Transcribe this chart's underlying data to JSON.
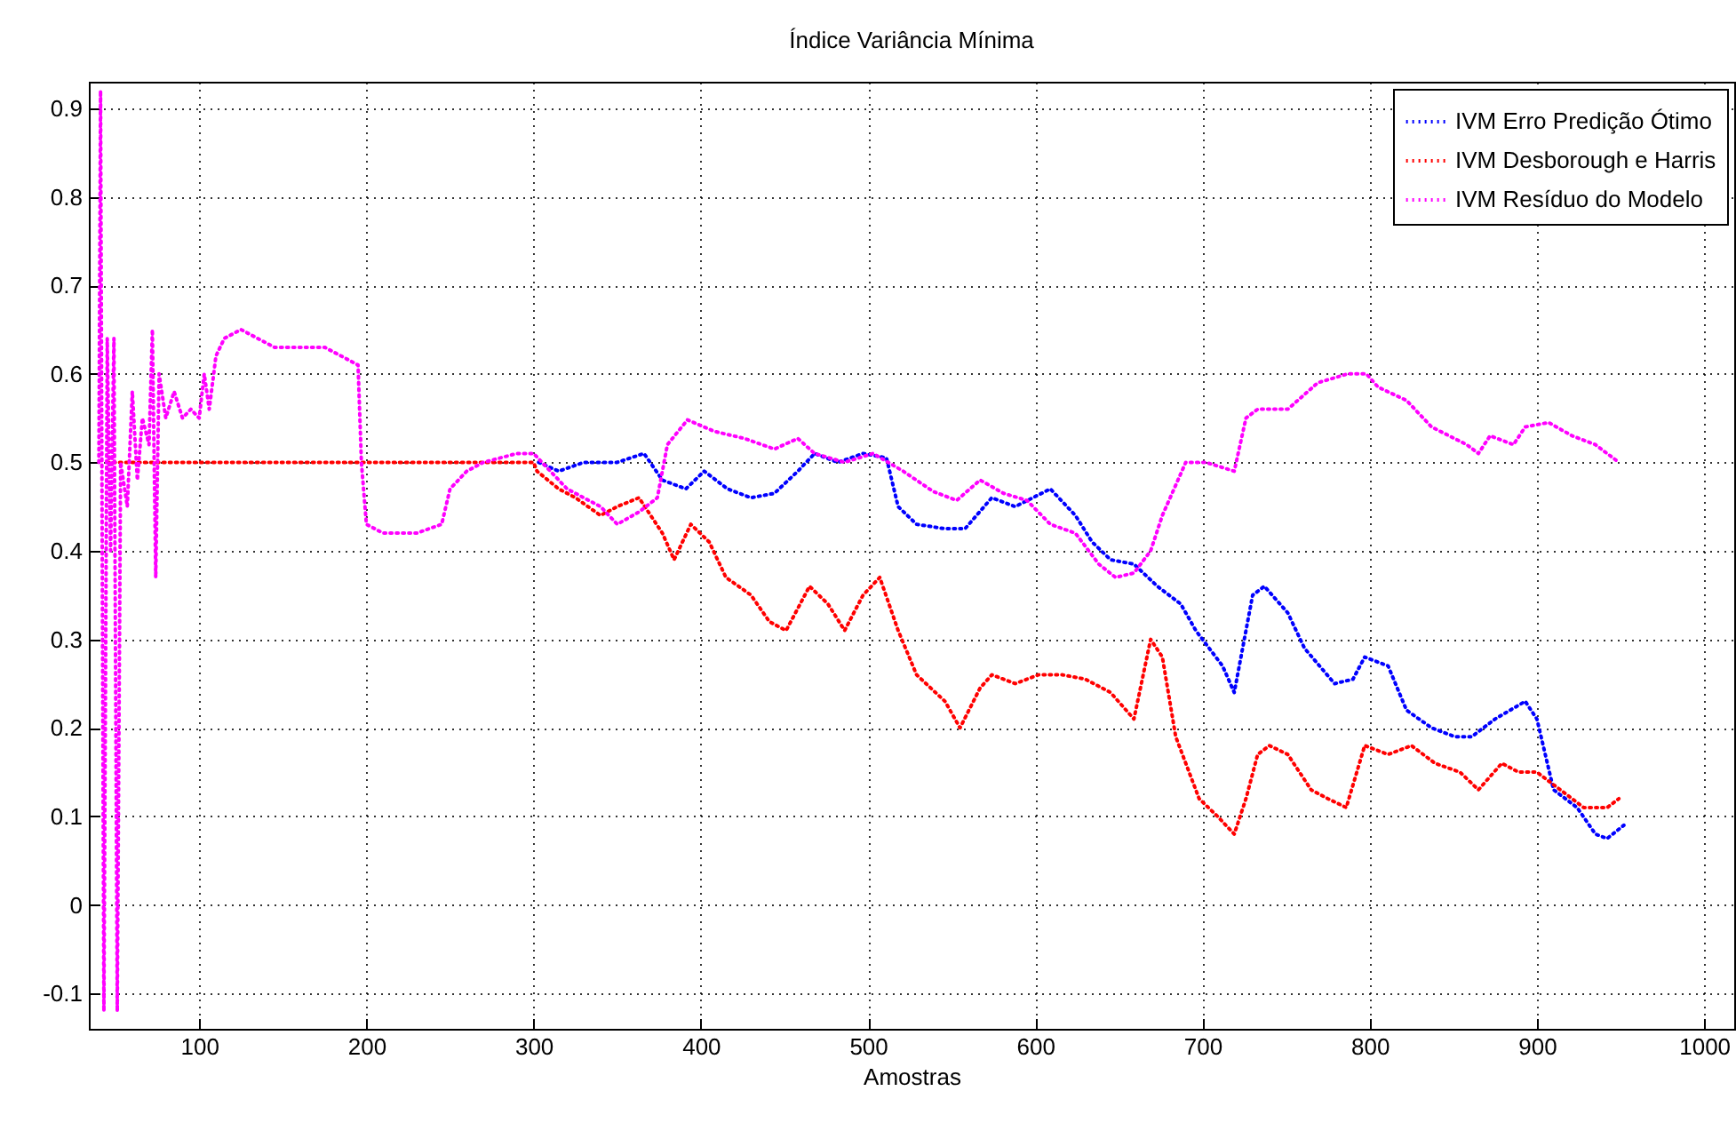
{
  "chart_data": {
    "type": "line",
    "title": "Índice Variância Mínima",
    "xlabel": "Amostras",
    "xlim": [
      34,
      1018
    ],
    "xticks": [
      100,
      200,
      300,
      400,
      500,
      600,
      700,
      800,
      900,
      1000
    ],
    "ylim": [
      -0.14,
      0.93
    ],
    "yticks": [
      -0.1,
      0,
      0.1,
      0.2,
      0.3,
      0.4,
      0.5,
      0.6,
      0.7,
      0.8,
      0.9
    ],
    "grid": true,
    "legend": "top right",
    "line_style": "dotted",
    "marker": "none",
    "series": [
      {
        "name": "IVM Erro Predição Ótimo",
        "color": "#0000ff",
        "x": [
          303,
          315,
          330,
          350,
          366,
          377,
          391,
          402,
          416,
          430,
          444,
          458,
          468,
          482,
          497,
          511,
          518,
          529,
          546,
          558,
          574,
          588,
          609,
          624,
          634,
          645,
          659,
          673,
          687,
          696,
          712,
          719,
          730,
          737,
          751,
          761,
          779,
          790,
          797,
          811,
          822,
          837,
          851,
          861,
          875,
          893,
          900,
          910,
          924,
          935,
          942,
          952
        ],
        "values": [
          0.5,
          0.49,
          0.5,
          0.5,
          0.51,
          0.48,
          0.47,
          0.49,
          0.47,
          0.46,
          0.465,
          0.49,
          0.51,
          0.5,
          0.51,
          0.505,
          0.45,
          0.43,
          0.425,
          0.425,
          0.46,
          0.45,
          0.47,
          0.44,
          0.41,
          0.39,
          0.385,
          0.36,
          0.34,
          0.31,
          0.27,
          0.24,
          0.35,
          0.36,
          0.33,
          0.29,
          0.25,
          0.255,
          0.28,
          0.27,
          0.22,
          0.2,
          0.19,
          0.19,
          0.21,
          0.23,
          0.21,
          0.13,
          0.11,
          0.08,
          0.075,
          0.09
        ]
      },
      {
        "name": "IVM Desborough e Harris",
        "color": "#ff0000",
        "x": [
          45,
          100,
          200,
          300,
          302,
          315,
          325,
          340,
          350,
          363,
          377,
          384,
          394,
          405,
          415,
          430,
          441,
          451,
          465,
          476,
          486,
          497,
          507,
          518,
          529,
          546,
          555,
          567,
          574,
          588,
          602,
          616,
          630,
          645,
          659,
          669,
          676,
          684,
          698,
          709,
          719,
          726,
          733,
          740,
          751,
          765,
          775,
          786,
          797,
          811,
          825,
          839,
          854,
          865,
          879,
          889,
          900,
          914,
          928,
          942,
          949
        ],
        "values": [
          0.5,
          0.5,
          0.5,
          0.5,
          0.49,
          0.47,
          0.46,
          0.44,
          0.45,
          0.46,
          0.42,
          0.39,
          0.43,
          0.41,
          0.37,
          0.35,
          0.32,
          0.31,
          0.36,
          0.34,
          0.31,
          0.35,
          0.37,
          0.31,
          0.26,
          0.23,
          0.2,
          0.245,
          0.26,
          0.25,
          0.26,
          0.26,
          0.255,
          0.24,
          0.21,
          0.3,
          0.28,
          0.19,
          0.12,
          0.1,
          0.08,
          0.12,
          0.17,
          0.18,
          0.17,
          0.13,
          0.12,
          0.11,
          0.18,
          0.17,
          0.18,
          0.16,
          0.15,
          0.13,
          0.16,
          0.15,
          0.15,
          0.13,
          0.11,
          0.11,
          0.12
        ]
      },
      {
        "name": "IVM Resíduo do Modelo",
        "color": "#ff00ff",
        "x": [
          40,
          41,
          43,
          45,
          47,
          49,
          51,
          53,
          57,
          60,
          63,
          66,
          70,
          72,
          74,
          76,
          80,
          85,
          90,
          95,
          100,
          103,
          106,
          110,
          115,
          125,
          135,
          145,
          160,
          175,
          185,
          195,
          197,
          200,
          210,
          230,
          245,
          250,
          260,
          270,
          290,
          300,
          320,
          340,
          350,
          363,
          374,
          380,
          392,
          408,
          426,
          444,
          458,
          468,
          486,
          503,
          521,
          539,
          553,
          567,
          581,
          595,
          609,
          624,
          638,
          648,
          659,
          669,
          676,
          683,
          690,
          702,
          719,
          726,
          733,
          751,
          769,
          787,
          798,
          805,
          822,
          837,
          858,
          865,
          872,
          886,
          893,
          907,
          921,
          935,
          949
        ],
        "values": [
          0.5,
          0.92,
          -0.12,
          0.64,
          0.4,
          0.64,
          -0.12,
          0.5,
          0.45,
          0.58,
          0.48,
          0.55,
          0.52,
          0.65,
          0.37,
          0.6,
          0.55,
          0.58,
          0.55,
          0.56,
          0.55,
          0.6,
          0.56,
          0.62,
          0.64,
          0.65,
          0.64,
          0.63,
          0.63,
          0.63,
          0.62,
          0.61,
          0.5,
          0.43,
          0.42,
          0.42,
          0.43,
          0.47,
          0.49,
          0.5,
          0.51,
          0.51,
          0.47,
          0.45,
          0.43,
          0.444,
          0.46,
          0.52,
          0.548,
          0.535,
          0.527,
          0.515,
          0.527,
          0.51,
          0.5,
          0.51,
          0.49,
          0.467,
          0.457,
          0.48,
          0.465,
          0.457,
          0.43,
          0.42,
          0.385,
          0.37,
          0.375,
          0.4,
          0.44,
          0.47,
          0.5,
          0.5,
          0.49,
          0.55,
          0.56,
          0.56,
          0.59,
          0.6,
          0.6,
          0.585,
          0.57,
          0.54,
          0.52,
          0.51,
          0.53,
          0.52,
          0.54,
          0.545,
          0.53,
          0.52,
          0.5
        ]
      }
    ]
  }
}
